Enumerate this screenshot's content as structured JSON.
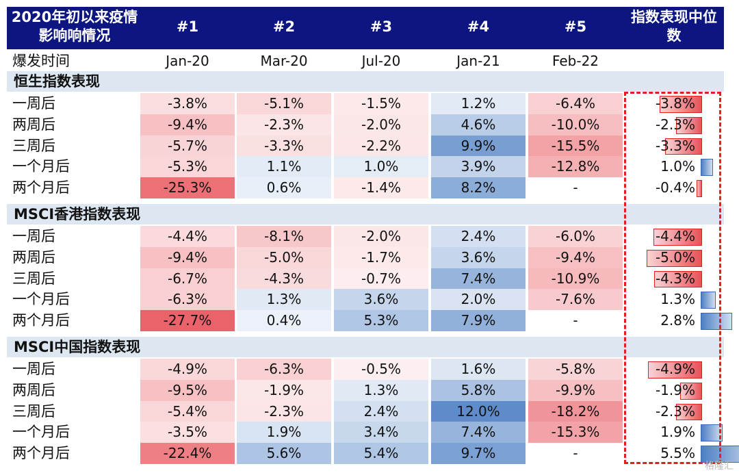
{
  "chart_data": {
    "type": "table",
    "header": {
      "label": "2020年初以来疫情影响响情况",
      "columns": [
        "#1",
        "#2",
        "#3",
        "#4",
        "#5"
      ],
      "median_label": "指数表现中位数",
      "date_row_label": "爆发时间",
      "dates": [
        "Jan-20",
        "Mar-20",
        "Jul-20",
        "Jan-21",
        "Feb-22"
      ]
    },
    "sections": [
      {
        "title": "恒生指数表现",
        "rows": [
          {
            "label": "一周后",
            "values": [
              "-3.8%",
              "-5.1%",
              "-1.5%",
              "1.2%",
              "-6.4%"
            ],
            "median": "-3.8%",
            "median_value": -3.8
          },
          {
            "label": "两周后",
            "values": [
              "-9.4%",
              "-2.3%",
              "-2.0%",
              "4.6%",
              "-10.0%"
            ],
            "median": "-2.3%",
            "median_value": -2.3
          },
          {
            "label": "三周后",
            "values": [
              "-5.7%",
              "-3.3%",
              "-2.2%",
              "9.9%",
              "-15.5%"
            ],
            "median": "-3.3%",
            "median_value": -3.3
          },
          {
            "label": "一个月后",
            "values": [
              "-5.3%",
              "1.1%",
              "1.0%",
              "3.9%",
              "-12.8%"
            ],
            "median": "1.0%",
            "median_value": 1.0
          },
          {
            "label": "两个月后",
            "values": [
              "-25.3%",
              "0.6%",
              "-1.4%",
              "8.2%",
              "-"
            ],
            "median": "-0.4%",
            "median_value": -0.4
          }
        ]
      },
      {
        "title": "MSCI香港指数表现",
        "rows": [
          {
            "label": "一周后",
            "values": [
              "-4.4%",
              "-8.1%",
              "-2.0%",
              "2.4%",
              "-6.0%"
            ],
            "median": "-4.4%",
            "median_value": -4.4
          },
          {
            "label": "两周后",
            "values": [
              "-9.4%",
              "-5.0%",
              "-1.7%",
              "3.6%",
              "-9.4%"
            ],
            "median": "-5.0%",
            "median_value": -5.0
          },
          {
            "label": "三周后",
            "values": [
              "-6.7%",
              "-4.3%",
              "-0.7%",
              "7.4%",
              "-10.9%"
            ],
            "median": "-4.3%",
            "median_value": -4.3
          },
          {
            "label": "一个月后",
            "values": [
              "-6.3%",
              "1.3%",
              "3.6%",
              "2.0%",
              "-7.6%"
            ],
            "median": "1.3%",
            "median_value": 1.3
          },
          {
            "label": "两个月后",
            "values": [
              "-27.7%",
              "0.4%",
              "5.3%",
              "7.9%",
              "-"
            ],
            "median": "2.8%",
            "median_value": 2.8
          }
        ]
      },
      {
        "title": "MSCI中国指数表现",
        "rows": [
          {
            "label": "一周后",
            "values": [
              "-4.9%",
              "-6.3%",
              "-0.5%",
              "1.6%",
              "-5.8%"
            ],
            "median": "-4.9%",
            "median_value": -4.9
          },
          {
            "label": "两周后",
            "values": [
              "-9.5%",
              "-1.9%",
              "1.3%",
              "5.8%",
              "-9.9%"
            ],
            "median": "-1.9%",
            "median_value": -1.9
          },
          {
            "label": "三周后",
            "values": [
              "-5.4%",
              "-2.3%",
              "2.4%",
              "12.0%",
              "-18.2%"
            ],
            "median": "-2.3%",
            "median_value": -2.3
          },
          {
            "label": "一个月后",
            "values": [
              "-3.5%",
              "1.9%",
              "3.4%",
              "7.4%",
              "-15.3%"
            ],
            "median": "1.9%",
            "median_value": 1.9
          },
          {
            "label": "两个月后",
            "values": [
              "-22.4%",
              "5.6%",
              "5.4%",
              "9.7%",
              "-"
            ],
            "median": "5.5%",
            "median_value": 5.5
          }
        ]
      }
    ],
    "colors": {
      "header_bg": "#0c1580",
      "negative": "#e8525a",
      "positive": "#4d7fc4",
      "section_bg": "#dde7f2",
      "highlight_box": "#e02020"
    }
  },
  "watermark": "格隆汇"
}
